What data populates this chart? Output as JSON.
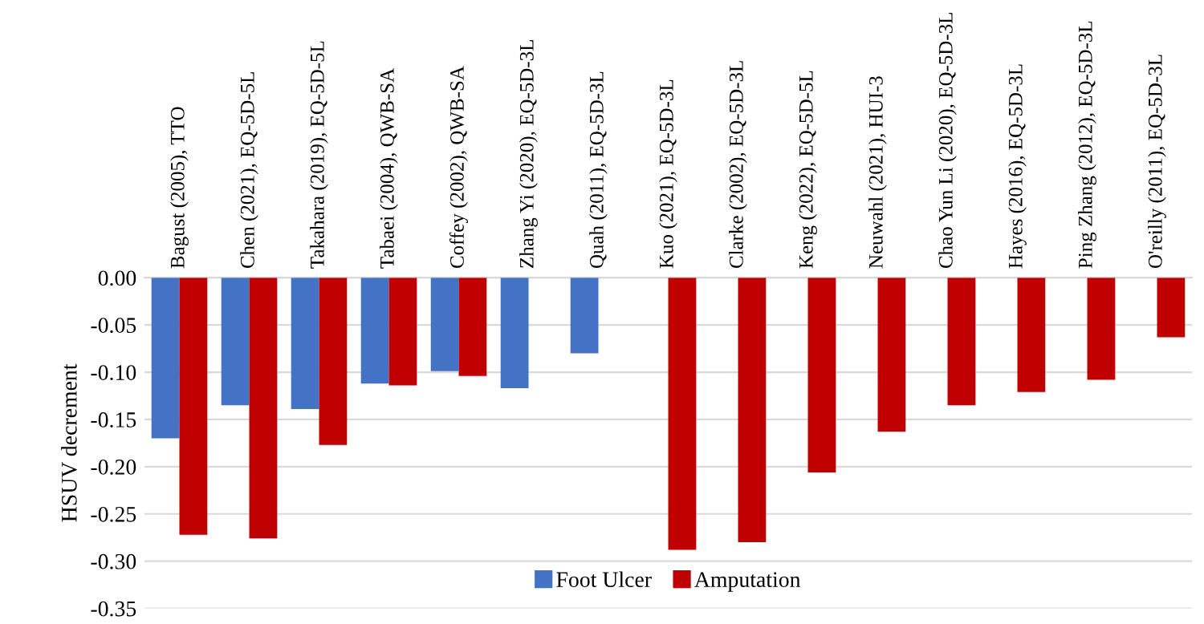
{
  "chart_data": {
    "type": "bar",
    "ylabel": "HSUV decrement",
    "categories": [
      "Bagust (2005), TTO",
      "Chen (2021), EQ-5D-5L",
      "Takahara (2019), EQ-5D-5L",
      "Tabaei (2004), QWB-SA",
      "Coffey (2002), QWB-SA",
      "Zhang Yi (2020), EQ-5D-3L",
      "Quah (2011), EQ-5D-3L",
      "Kuo (2021), EQ-5D-3L",
      "Clarke (2002), EQ-5D-3L",
      "Keng (2022), EQ-5D-5L",
      "Neuwahl (2021), HUI-3",
      "Chao Yun Li (2020), EQ-5D-3L",
      "Hayes (2016), EQ-5D-3L",
      "Ping Zhang (2012), EQ-5D-3L",
      "O'reilly (2011), EQ-5D-3L"
    ],
    "series": [
      {
        "name": "Foot Ulcer",
        "color": "#4472c4",
        "values": [
          -0.17,
          -0.135,
          -0.139,
          -0.112,
          -0.099,
          -0.117,
          -0.08,
          null,
          null,
          null,
          null,
          null,
          null,
          null,
          null
        ]
      },
      {
        "name": "Amputation",
        "color": "#c00000",
        "values": [
          -0.272,
          -0.276,
          -0.177,
          -0.114,
          -0.104,
          null,
          null,
          -0.288,
          -0.28,
          -0.206,
          -0.163,
          -0.135,
          -0.121,
          -0.108,
          -0.063
        ]
      }
    ],
    "ylim": [
      -0.35,
      0
    ],
    "yticks": [
      {
        "value": 0,
        "label": "0.00"
      },
      {
        "value": -0.05,
        "label": "-0.05"
      },
      {
        "value": -0.1,
        "label": "-0.10"
      },
      {
        "value": -0.15,
        "label": "-0.15"
      },
      {
        "value": -0.2,
        "label": "-0.20"
      },
      {
        "value": -0.25,
        "label": "-0.25"
      },
      {
        "value": -0.3,
        "label": "-0.30"
      },
      {
        "value": -0.35,
        "label": "-0.35"
      }
    ],
    "grid": "y",
    "legend": "bottom"
  }
}
